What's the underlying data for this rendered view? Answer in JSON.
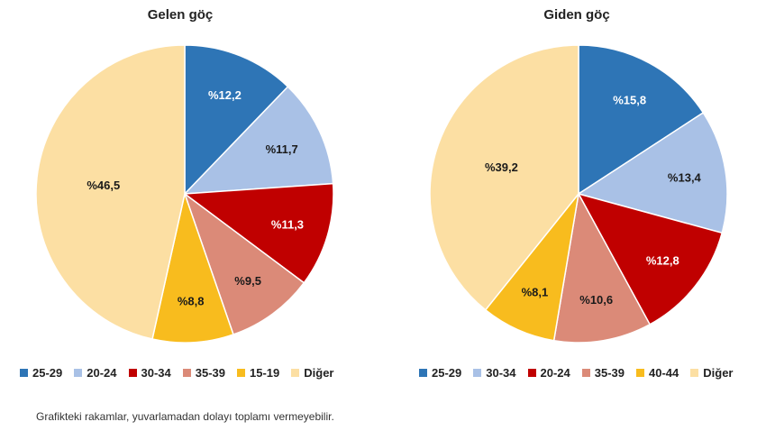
{
  "chart_data": [
    {
      "type": "pie",
      "title": "Gelen göç",
      "categories": [
        "25-29",
        "20-24",
        "30-34",
        "35-39",
        "15-19",
        "Diğer"
      ],
      "values": [
        12.2,
        11.7,
        11.3,
        9.5,
        8.8,
        46.5
      ],
      "labels": [
        "%12,2",
        "%11,7",
        "%11,3",
        "%9,5",
        "%8,8",
        "%46,5"
      ],
      "colors": [
        "#2E75B6",
        "#A9C1E6",
        "#C00000",
        "#DB8A78",
        "#F8BC1E",
        "#FCDFA3"
      ],
      "label_colors": [
        "#ffffff",
        "#1a1a1a",
        "#ffffff",
        "#1a1a1a",
        "#1a1a1a",
        "#1a1a1a"
      ],
      "legend_position": "bottom"
    },
    {
      "type": "pie",
      "title": "Giden göç",
      "categories": [
        "25-29",
        "30-34",
        "20-24",
        "35-39",
        "40-44",
        "Diğer"
      ],
      "values": [
        15.8,
        13.4,
        12.8,
        10.6,
        8.1,
        39.2
      ],
      "labels": [
        "%15,8",
        "%13,4",
        "%12,8",
        "%10,6",
        "%8,1",
        "%39,2"
      ],
      "colors": [
        "#2E75B6",
        "#A9C1E6",
        "#C00000",
        "#DB8A78",
        "#F8BC1E",
        "#FCDFA3"
      ],
      "label_colors": [
        "#ffffff",
        "#1a1a1a",
        "#ffffff",
        "#1a1a1a",
        "#1a1a1a",
        "#1a1a1a"
      ],
      "legend_position": "bottom"
    }
  ],
  "footnote": "Grafikteki rakamlar, yuvarlamadan dolayı toplamı vermeyebilir."
}
